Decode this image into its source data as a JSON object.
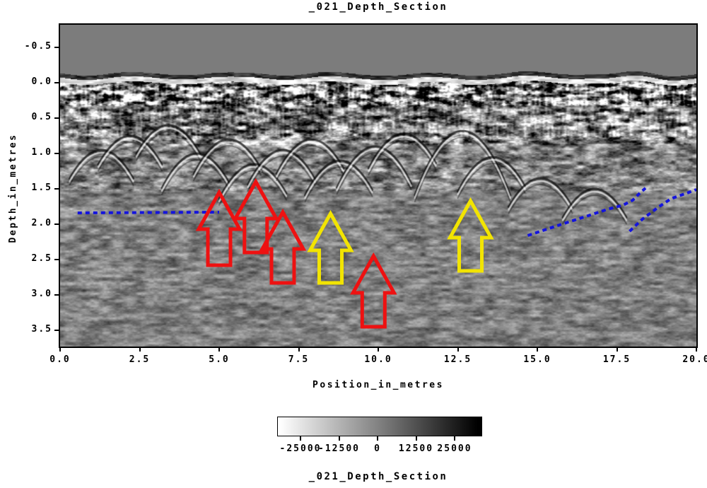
{
  "figure": {
    "title": "_021_Depth_Section",
    "footer_title": "_021_Depth_Section"
  },
  "chart_data": {
    "type": "heatmap",
    "title": "_021_Depth_Section",
    "xlabel": "Position_in_metres",
    "ylabel": "Depth_in_metres",
    "xlim": [
      0.0,
      20.0
    ],
    "depth_range_m": [
      -0.82,
      3.73
    ],
    "ground_surface_depth_m": 0.0,
    "xticks": [
      "0.0",
      "2.5",
      "5.0",
      "7.5",
      "10.0",
      "12.5",
      "15.0",
      "17.5",
      "20.0"
    ],
    "yticks": [
      "-0.5",
      "0.0",
      "0.5",
      "1.0",
      "1.5",
      "2.0",
      "2.5",
      "3.0",
      "3.5"
    ],
    "grid": false,
    "colorbar": {
      "ticks": [
        "-25000",
        "-12500",
        "0",
        "12500",
        "25000"
      ],
      "amplitude_range": [
        -32000,
        32000
      ],
      "low_color": "#ffffff",
      "high_color": "#000000",
      "label": "_021_Depth_Section"
    },
    "air_layer_color": "#7c7c7c",
    "annotations": {
      "arrows": [
        {
          "name": "red-arrow",
          "color": "#ee1111",
          "x": 5.0,
          "tip_depth": 1.55,
          "base_depth": 2.58
        },
        {
          "name": "red-arrow",
          "color": "#ee1111",
          "x": 6.15,
          "tip_depth": 1.4,
          "base_depth": 2.4
        },
        {
          "name": "red-arrow",
          "color": "#ee1111",
          "x": 7.0,
          "tip_depth": 1.83,
          "base_depth": 2.83
        },
        {
          "name": "red-arrow",
          "color": "#ee1111",
          "x": 9.85,
          "tip_depth": 2.45,
          "base_depth": 3.45
        },
        {
          "name": "yellow-arrow",
          "color": "#f2e400",
          "x": 8.5,
          "tip_depth": 1.85,
          "base_depth": 2.83
        },
        {
          "name": "yellow-arrow",
          "color": "#f2e400",
          "x": 12.9,
          "tip_depth": 1.67,
          "base_depth": 2.66
        }
      ],
      "dashed_lines": [
        {
          "name": "horizon-pick-left",
          "color": "#1414dd",
          "points": [
            [
              0.55,
              1.84
            ],
            [
              5.0,
              1.83
            ]
          ]
        },
        {
          "name": "horizon-pick-right-lower",
          "color": "#1414dd",
          "points": [
            [
              14.7,
              2.16
            ],
            [
              15.7,
              2.01
            ],
            [
              16.6,
              1.88
            ],
            [
              17.2,
              1.79
            ],
            [
              17.7,
              1.73
            ],
            [
              18.0,
              1.66
            ],
            [
              18.2,
              1.57
            ],
            [
              18.4,
              1.49
            ]
          ]
        },
        {
          "name": "horizon-pick-right-upper",
          "color": "#1414dd",
          "points": [
            [
              17.9,
              2.1
            ],
            [
              18.3,
              1.93
            ],
            [
              18.8,
              1.76
            ],
            [
              19.2,
              1.64
            ],
            [
              19.7,
              1.56
            ],
            [
              20.0,
              1.51
            ]
          ]
        }
      ]
    },
    "reflection_hyperbolas": [
      {
        "x": 1.3,
        "depth": 0.95,
        "w": 1.0
      },
      {
        "x": 2.2,
        "depth": 0.75,
        "w": 1.0
      },
      {
        "x": 3.4,
        "depth": 0.6,
        "w": 1.0
      },
      {
        "x": 4.3,
        "depth": 1.0,
        "w": 1.1
      },
      {
        "x": 5.3,
        "depth": 0.8,
        "w": 1.1
      },
      {
        "x": 6.1,
        "depth": 1.15,
        "w": 1.1
      },
      {
        "x": 7.0,
        "depth": 0.95,
        "w": 1.1
      },
      {
        "x": 7.9,
        "depth": 0.8,
        "w": 1.1
      },
      {
        "x": 8.8,
        "depth": 1.1,
        "w": 1.1
      },
      {
        "x": 9.9,
        "depth": 0.9,
        "w": 1.2
      },
      {
        "x": 10.8,
        "depth": 0.72,
        "w": 1.1
      },
      {
        "x": 12.65,
        "depth": 0.68,
        "w": 1.5
      },
      {
        "x": 13.6,
        "depth": 1.05,
        "w": 1.1
      },
      {
        "x": 15.1,
        "depth": 1.35,
        "w": 1.0
      },
      {
        "x": 16.8,
        "depth": 1.5,
        "w": 1.0
      }
    ]
  }
}
